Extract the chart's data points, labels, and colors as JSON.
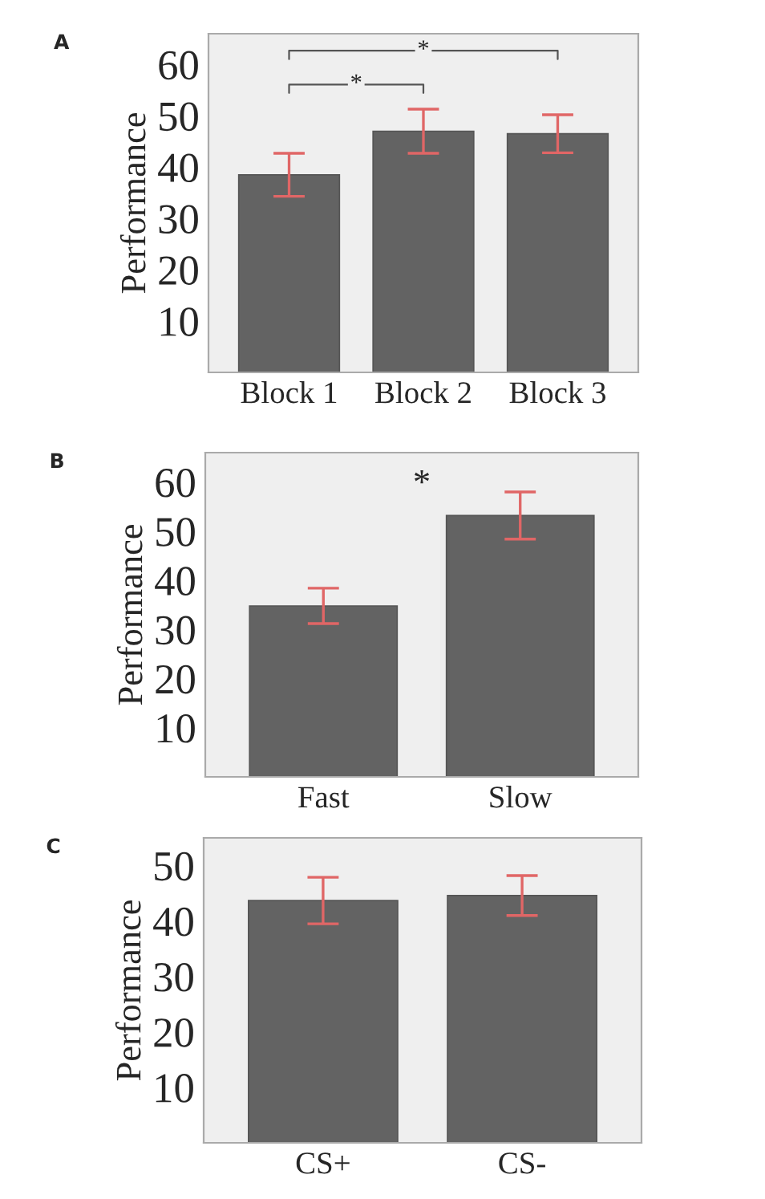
{
  "chart_data": [
    {
      "type": "bar",
      "categories": [
        "Block 1",
        "Block 2",
        "Block 3"
      ],
      "values": [
        38.5,
        47,
        46.5
      ],
      "errors": [
        4.2,
        4.3,
        3.7
      ],
      "color": "#636363",
      "ylabel": "Performance",
      "ylim": [
        0,
        66
      ],
      "yticks": [
        10,
        20,
        30,
        40,
        50,
        60
      ],
      "annotations": [
        "A",
        "*",
        "*"
      ],
      "grid": false,
      "legend": false
    },
    {
      "type": "bar",
      "categories": [
        "Fast",
        "Slow"
      ],
      "values": [
        34.8,
        53.2
      ],
      "errors": [
        3.6,
        4.8
      ],
      "color": "#636363",
      "ylabel": "Performance",
      "ylim": [
        0,
        66
      ],
      "yticks": [
        10,
        20,
        30,
        40,
        50,
        60
      ],
      "annotations": [
        "B",
        "*"
      ],
      "grid": false,
      "legend": false
    },
    {
      "type": "bar",
      "categories": [
        "CS+",
        "CS-"
      ],
      "values": [
        43.7,
        44.6
      ],
      "errors": [
        4.2,
        3.6
      ],
      "color": "#636363",
      "ylabel": "Performance",
      "ylim": [
        0,
        55
      ],
      "yticks": [
        10,
        20,
        30,
        40,
        50
      ],
      "annotations": [
        "C"
      ],
      "grid": false,
      "legend": false
    }
  ]
}
